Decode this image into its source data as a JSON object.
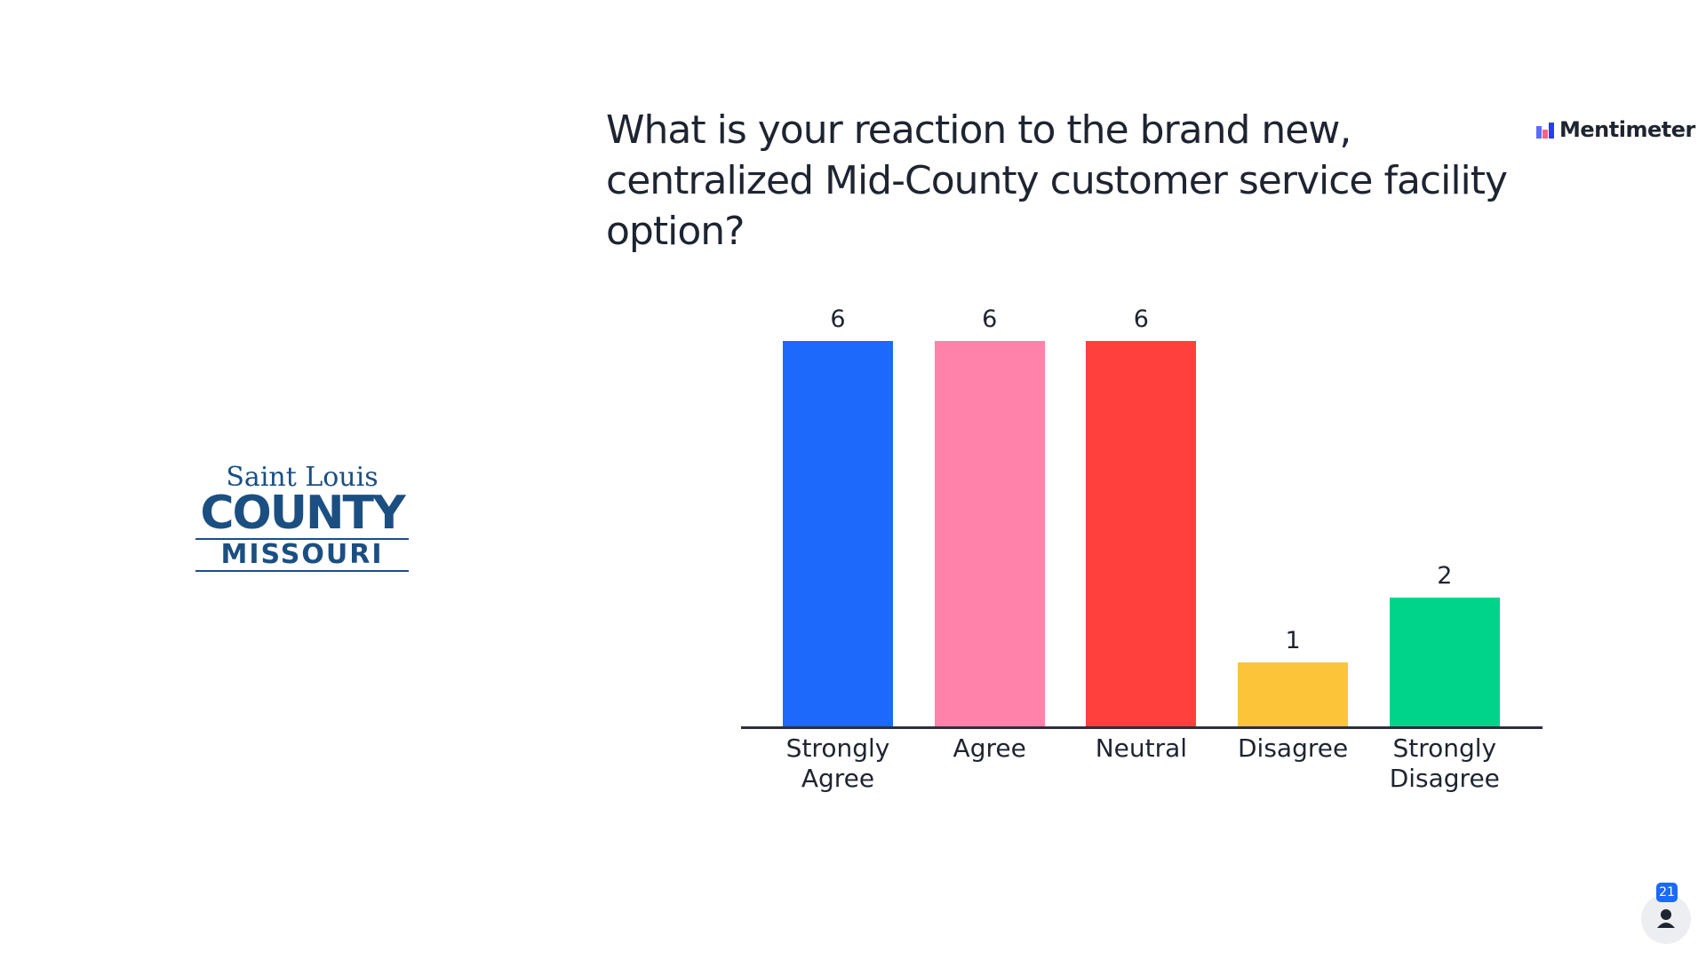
{
  "title": "What is your reaction to the brand new, centralized Mid-County customer service facility option?",
  "brand": "Mentimeter",
  "logo": {
    "line1": "Saint Louis",
    "line2": "COUNTY",
    "line3": "MISSOURI"
  },
  "participants": "21",
  "chart_data": {
    "type": "bar",
    "categories": [
      "Strongly Agree",
      "Agree",
      "Neutral",
      "Disagree",
      "Strongly Disagree"
    ],
    "values": [
      6,
      6,
      6,
      1,
      2
    ],
    "colors": [
      "#1c69fb",
      "#ff82aa",
      "#ff403d",
      "#fcc539",
      "#00d48b"
    ]
  }
}
